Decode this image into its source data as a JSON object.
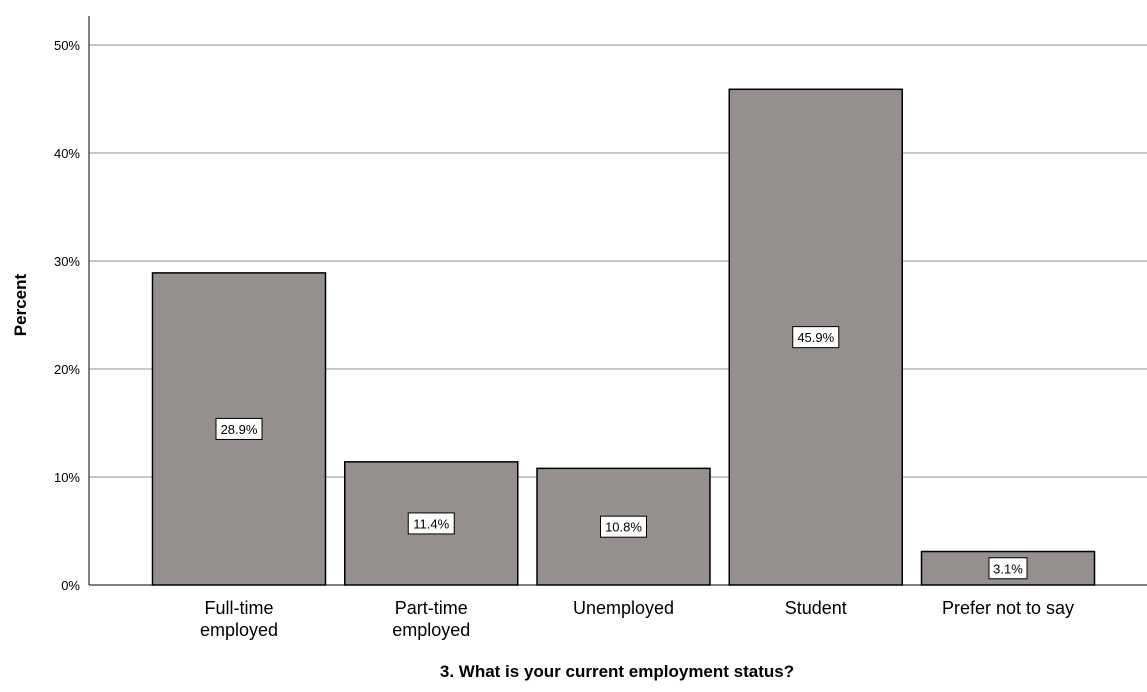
{
  "chart_data": {
    "type": "bar",
    "title": "",
    "xlabel": "3. What is your current employment status?",
    "ylabel": "Percent",
    "categories": [
      [
        "Full-time",
        "employed"
      ],
      [
        "Part-time",
        "employed"
      ],
      [
        "Unemployed"
      ],
      [
        "Student"
      ],
      [
        "Prefer not to say"
      ]
    ],
    "values": [
      28.9,
      11.4,
      10.8,
      45.9,
      3.1
    ],
    "value_labels": [
      "28.9%",
      "11.4%",
      "10.8%",
      "45.9%",
      "3.1%"
    ],
    "yticks": [
      0,
      10,
      20,
      30,
      40,
      50
    ],
    "ytick_labels": [
      "0%",
      "10%",
      "20%",
      "30%",
      "40%",
      "50%"
    ],
    "ylim": [
      0,
      50
    ],
    "grid": true,
    "legend": "none",
    "colors": {
      "bar_fill": "#958f8e",
      "bar_stroke": "#000000",
      "grid": "#b5b5b5",
      "axis": "#000000",
      "label_box_fill": "#ffffff"
    }
  }
}
